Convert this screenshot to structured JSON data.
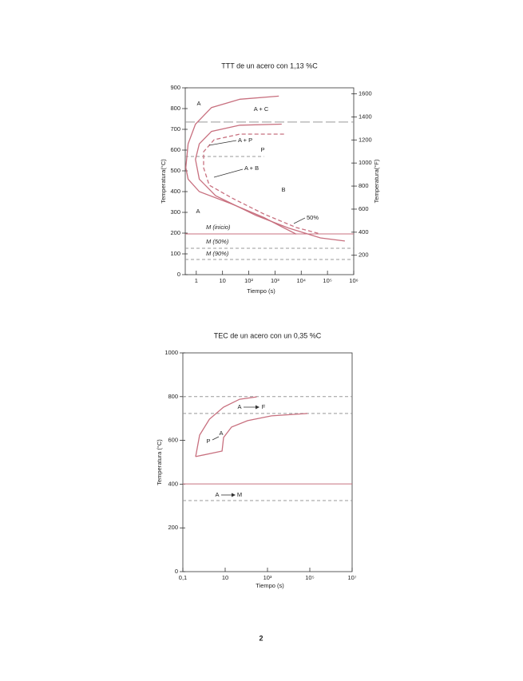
{
  "page_number": "2",
  "chart_data": [
    {
      "type": "line",
      "title": "TTT de un acero con 1,13 %C",
      "x_label": "Tiempo (s)",
      "y_label": "Temperatura(°C)",
      "y2_label": "Temperatura(°F)",
      "x_scale": "log",
      "xlim": [
        0.38,
        1000000
      ],
      "xticks": [
        1,
        10,
        {
          "value": 100,
          "label": "10²"
        },
        {
          "value": 1000,
          "label": "10³"
        },
        {
          "value": 10000,
          "label": "10⁴"
        },
        {
          "value": 100000,
          "label": "10⁵"
        },
        {
          "value": 1000000,
          "label": "10⁶"
        }
      ],
      "ylim": [
        0,
        900
      ],
      "yticks": [
        0,
        100,
        200,
        300,
        400,
        500,
        600,
        700,
        800,
        900
      ],
      "y2lim": [
        32,
        1652
      ],
      "y2ticks": [
        200,
        400,
        600,
        800,
        1000,
        1200,
        1400,
        1600
      ],
      "series": [
        {
          "color": "#c8707f",
          "x": [
            1400,
            46,
            3.8,
            0.93,
            0.49,
            0.4,
            0.49,
            1.3,
            23,
            380,
            2200,
            6500
          ],
          "values": [
            860,
            845,
            805,
            725,
            630,
            515,
            460,
            400,
            340,
            275,
            225,
            195
          ]
        },
        {
          "color": "#c8707f",
          "x": [
            1800,
            46,
            3.8,
            1.3,
            0.93,
            1.3,
            5.5,
            190,
            3200,
            54000,
            460000
          ],
          "values": [
            725,
            720,
            690,
            630,
            555,
            460,
            380,
            285,
            225,
            177,
            162
          ]
        },
        {
          "color": "#c8707f",
          "dash": true,
          "x": [
            2200,
            46,
            4.8,
            1.9,
            1.9,
            3.1,
            23,
            380,
            6500,
            54000
          ],
          "values": [
            677,
            677,
            650,
            592,
            515,
            431,
            369,
            292,
            227,
            196
          ]
        }
      ],
      "hlines": [
        {
          "y": 735,
          "color": "#999999",
          "dash": "long"
        },
        {
          "y": 569,
          "color": "#999999",
          "dash": "short",
          "xmax": 380
        },
        {
          "y": 196,
          "color": "#c8707f"
        },
        {
          "y": 127,
          "color": "#999999",
          "dash": "short"
        },
        {
          "y": 73,
          "color": "#999999",
          "dash": "short"
        }
      ],
      "annotations": [
        "A",
        "A + C",
        "A + P",
        "P",
        "A + B",
        "B",
        "A",
        "M (inicio)",
        "M (50%)",
        "M (90%)",
        "50%"
      ]
    },
    {
      "type": "line",
      "title": "TEC de un acero con un 0,35 %C",
      "x_label": "Tiempo (s)",
      "y_label": "Temperatura (°C)",
      "x_scale": "log",
      "xlim": [
        0.1,
        10000000
      ],
      "xticks": [
        {
          "value": 0.1,
          "label": "0,1"
        },
        10,
        {
          "value": 1000,
          "label": "10³"
        },
        {
          "value": 100000,
          "label": "10⁵"
        },
        {
          "value": 10000000,
          "label": "10⁷"
        }
      ],
      "ylim": [
        0,
        1000
      ],
      "yticks": [
        0,
        200,
        400,
        600,
        800,
        1000
      ],
      "series": [
        {
          "color": "#c8707f",
          "x": [
            0.4,
            0.62,
            1.8,
            8.3,
            48,
            310
          ],
          "values": [
            525,
            624,
            697,
            752,
            788,
            799
          ]
        },
        {
          "color": "#c8707f",
          "x": [
            0.4,
            7.1,
            8.4,
            20,
            115,
            1550,
            78000
          ],
          "values": [
            526,
            551,
            613,
            661,
            690,
            712,
            723
          ]
        }
      ],
      "hlines": [
        {
          "y": 800,
          "color": "#999999",
          "dash": "short"
        },
        {
          "y": 723,
          "color": "#999999",
          "dash": "short"
        },
        {
          "y": 401,
          "color": "#c8707f"
        },
        {
          "y": 325,
          "color": "#999999",
          "dash": "short"
        }
      ],
      "annotations": [
        {
          "from": "A",
          "to": "F"
        },
        {
          "from": "A",
          "to": "P"
        },
        {
          "from": "A",
          "to": "M"
        }
      ]
    }
  ]
}
